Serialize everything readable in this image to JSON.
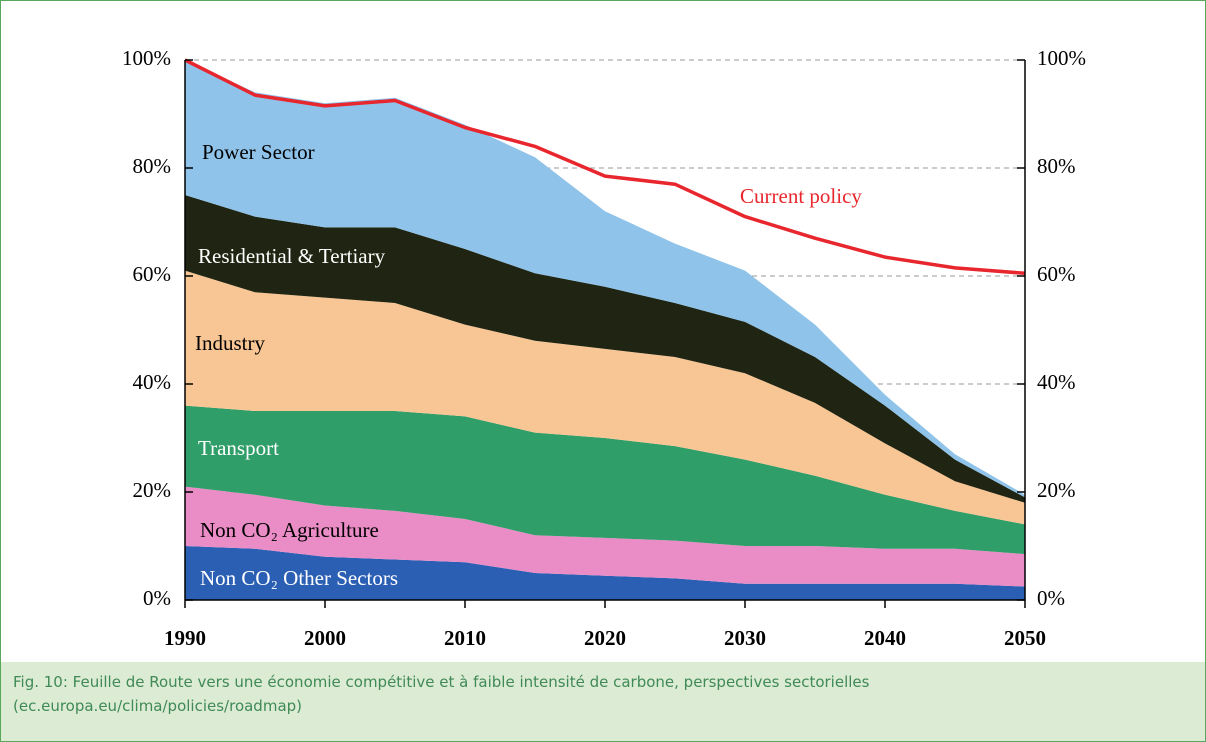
{
  "chart_data": {
    "type": "area",
    "x": [
      1990,
      1995,
      2000,
      2005,
      2010,
      2015,
      2020,
      2025,
      2030,
      2035,
      2040,
      2045,
      2050
    ],
    "xlim": [
      1990,
      2050
    ],
    "xticks": [
      1990,
      2000,
      2010,
      2020,
      2030,
      2040,
      2050
    ],
    "ylim": [
      0,
      100
    ],
    "yticks": [
      {
        "value": 0,
        "label": "0%"
      },
      {
        "value": 20,
        "label": "20%"
      },
      {
        "value": 40,
        "label": "40%"
      },
      {
        "value": 60,
        "label": "60%"
      },
      {
        "value": 80,
        "label": "80%"
      },
      {
        "value": 100,
        "label": "100%"
      }
    ],
    "y2lim": [
      0,
      100
    ],
    "y2ticks": [
      {
        "value": 0,
        "label": "0%"
      },
      {
        "value": 20,
        "label": "20%"
      },
      {
        "value": 40,
        "label": "40%"
      },
      {
        "value": 60,
        "label": "60%"
      },
      {
        "value": 80,
        "label": "80%"
      },
      {
        "value": 100,
        "label": "100%"
      }
    ],
    "grid": true,
    "series": [
      {
        "name": "Non CO₂ Other Sectors",
        "color": "#2b5fb3",
        "values": [
          10,
          9.5,
          8,
          7.5,
          7,
          5,
          4.5,
          4,
          3,
          3,
          3,
          3,
          2.5
        ]
      },
      {
        "name": "Non CO₂ Agriculture",
        "color": "#ea8cc6",
        "values": [
          11,
          10,
          9.5,
          9,
          8,
          7,
          7,
          7,
          7,
          7,
          6.5,
          6.5,
          6
        ]
      },
      {
        "name": "Transport",
        "color": "#2f9e69",
        "values": [
          15,
          15.5,
          17.5,
          18.5,
          19,
          19,
          18.5,
          17.5,
          16,
          13,
          10,
          7,
          5.5
        ]
      },
      {
        "name": "Industry",
        "color": "#f8c594",
        "values": [
          25,
          22,
          21,
          20,
          17,
          17,
          16.5,
          16.5,
          16,
          13.5,
          9.5,
          5.5,
          4
        ]
      },
      {
        "name": "Residential & Tertiary",
        "color": "#1f2512",
        "values": [
          14,
          14,
          13,
          14,
          14,
          12.5,
          11.5,
          10,
          9.5,
          8.5,
          7,
          4,
          1
        ]
      },
      {
        "name": "Power Sector",
        "color": "#8fc3ea",
        "values": [
          25,
          23,
          23,
          24,
          23,
          21.5,
          14,
          11,
          9.5,
          6,
          2,
          1,
          0.5
        ]
      },
      {
        "name": "Current policy",
        "color": "#e8262d",
        "type": "line",
        "values": [
          100,
          93.5,
          91.5,
          92.5,
          87.5,
          84,
          78.5,
          77,
          71,
          67,
          63.5,
          61.5,
          60.5
        ]
      }
    ]
  },
  "caption": "Fig. 10: Feuille de Route vers une économie compétitive et à faible intensité de carbone, perspectives sectorielles (ec.europa.eu/clima/policies/roadmap)"
}
